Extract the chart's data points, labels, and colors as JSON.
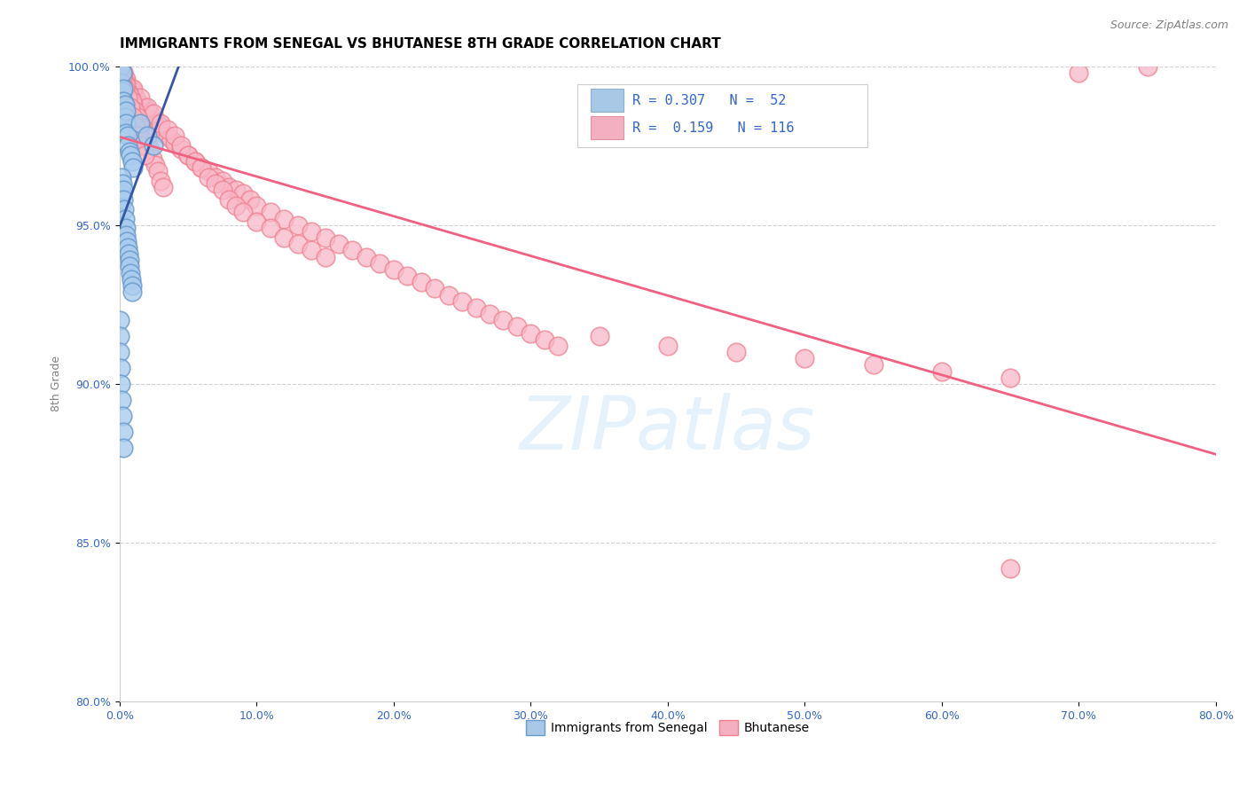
{
  "title": "IMMIGRANTS FROM SENEGAL VS BHUTANESE 8TH GRADE CORRELATION CHART",
  "source": "Source: ZipAtlas.com",
  "ylabel": "8th Grade",
  "x_min": 0.0,
  "x_max": 80.0,
  "y_min": 80.0,
  "y_max": 100.0,
  "x_ticks": [
    0.0,
    10.0,
    20.0,
    30.0,
    40.0,
    50.0,
    60.0,
    70.0,
    80.0
  ],
  "y_ticks": [
    80.0,
    85.0,
    90.0,
    95.0,
    100.0
  ],
  "R_senegal": 0.307,
  "N_senegal": 52,
  "R_bhutanese": 0.159,
  "N_bhutanese": 116,
  "color_senegal_edge": "#6699cc",
  "color_senegal_face": "#aaccee",
  "color_bhutanese_edge": "#f08090",
  "color_bhutanese_face": "#f8b8c8",
  "color_trendline_senegal": "#3355aa",
  "color_trendline_bhutanese": "#f06080",
  "legend_color_senegal": "#a8c8e8",
  "legend_color_bhutanese": "#f4b0c0",
  "watermark_color": "#d0e8f8",
  "title_fontsize": 11,
  "axis_label_fontsize": 9,
  "tick_fontsize": 9,
  "senegal_x": [
    0.1,
    0.1,
    0.1,
    0.2,
    0.2,
    0.2,
    0.3,
    0.3,
    0.3,
    0.4,
    0.4,
    0.5,
    0.5,
    0.5,
    0.6,
    0.6,
    0.7,
    0.8,
    0.9,
    1.0,
    0.1,
    0.1,
    0.15,
    0.15,
    0.2,
    0.25,
    0.3,
    0.35,
    0.4,
    0.45,
    0.5,
    0.55,
    0.6,
    0.65,
    0.7,
    0.75,
    0.8,
    0.85,
    0.9,
    0.95,
    0.05,
    0.05,
    0.05,
    0.1,
    0.1,
    0.15,
    0.2,
    0.25,
    0.3,
    1.5,
    2.0,
    2.5
  ],
  "senegal_y": [
    100.0,
    99.5,
    99.0,
    99.8,
    99.2,
    98.7,
    99.3,
    98.9,
    98.5,
    98.8,
    98.4,
    98.6,
    98.2,
    97.9,
    97.8,
    97.5,
    97.3,
    97.2,
    97.0,
    96.8,
    95.5,
    95.0,
    96.5,
    96.0,
    96.3,
    96.1,
    95.8,
    95.5,
    95.2,
    94.9,
    94.7,
    94.5,
    94.3,
    94.1,
    93.9,
    93.7,
    93.5,
    93.3,
    93.1,
    92.9,
    92.0,
    91.5,
    91.0,
    90.5,
    90.0,
    89.5,
    89.0,
    88.5,
    88.0,
    98.2,
    97.8,
    97.5
  ],
  "bhutanese_x": [
    0.3,
    0.5,
    0.8,
    1.0,
    1.2,
    1.5,
    1.8,
    2.0,
    2.2,
    2.5,
    2.8,
    3.0,
    3.2,
    3.5,
    3.8,
    4.0,
    4.5,
    5.0,
    5.5,
    6.0,
    6.5,
    7.0,
    7.5,
    8.0,
    8.5,
    9.0,
    9.5,
    10.0,
    11.0,
    12.0,
    13.0,
    14.0,
    15.0,
    16.0,
    17.0,
    18.0,
    19.0,
    20.0,
    21.0,
    22.0,
    23.0,
    24.0,
    25.0,
    26.0,
    27.0,
    28.0,
    29.0,
    30.0,
    31.0,
    32.0,
    0.5,
    1.0,
    1.5,
    2.0,
    2.5,
    3.0,
    3.5,
    4.0,
    4.5,
    5.0,
    5.5,
    6.0,
    6.5,
    7.0,
    7.5,
    8.0,
    8.5,
    9.0,
    10.0,
    11.0,
    12.0,
    13.0,
    14.0,
    15.0,
    0.2,
    0.4,
    0.6,
    0.8,
    1.0,
    1.2,
    1.4,
    1.6,
    1.8,
    2.0,
    2.2,
    2.4,
    2.6,
    2.8,
    3.0,
    3.2,
    0.3,
    0.5,
    0.7,
    0.9,
    1.1,
    1.3,
    1.5,
    35.0,
    40.0,
    45.0,
    50.0,
    55.0,
    60.0,
    65.0,
    70.0,
    75.0,
    65.0,
    0.2,
    0.4,
    0.6,
    0.8,
    1.0,
    1.2,
    1.4,
    1.6,
    1.8
  ],
  "bhutanese_y": [
    99.8,
    99.5,
    99.3,
    99.2,
    99.0,
    98.8,
    98.7,
    98.6,
    98.5,
    98.3,
    98.2,
    98.1,
    97.9,
    97.8,
    97.7,
    97.6,
    97.4,
    97.2,
    97.0,
    96.8,
    96.7,
    96.5,
    96.4,
    96.2,
    96.1,
    96.0,
    95.8,
    95.6,
    95.4,
    95.2,
    95.0,
    94.8,
    94.6,
    94.4,
    94.2,
    94.0,
    93.8,
    93.6,
    93.4,
    93.2,
    93.0,
    92.8,
    92.6,
    92.4,
    92.2,
    92.0,
    91.8,
    91.6,
    91.4,
    91.2,
    99.6,
    99.3,
    99.0,
    98.7,
    98.5,
    98.2,
    98.0,
    97.8,
    97.5,
    97.2,
    97.0,
    96.8,
    96.5,
    96.3,
    96.1,
    95.8,
    95.6,
    95.4,
    95.1,
    94.9,
    94.6,
    94.4,
    94.2,
    94.0,
    99.7,
    99.5,
    99.2,
    99.0,
    98.8,
    98.5,
    98.3,
    98.1,
    97.8,
    97.6,
    97.4,
    97.1,
    96.9,
    96.7,
    96.4,
    96.2,
    99.8,
    99.4,
    99.1,
    98.9,
    98.6,
    98.4,
    98.1,
    91.5,
    91.2,
    91.0,
    90.8,
    90.6,
    90.4,
    90.2,
    99.8,
    100.0,
    84.2,
    99.6,
    99.3,
    99.0,
    98.7,
    98.4,
    98.1,
    97.8,
    97.5,
    97.2
  ]
}
